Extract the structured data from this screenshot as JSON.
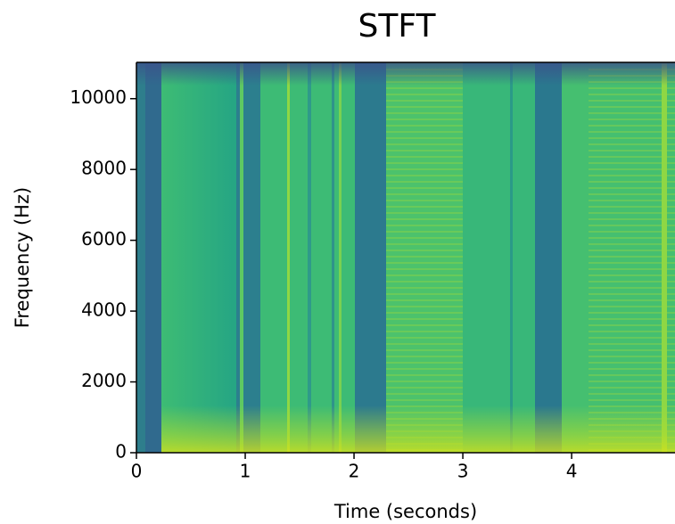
{
  "chart_data": {
    "type": "spectrogram",
    "title": "STFT",
    "title_color": "#c00000",
    "x_label": "Time (seconds)",
    "y_label": "Frequency (Hz)",
    "xlim": [
      0,
      4.95
    ],
    "ylim": [
      0,
      11025
    ],
    "xticks": [
      0,
      1,
      2,
      3,
      4
    ],
    "yticks": [
      0,
      2000,
      4000,
      6000,
      8000,
      10000
    ]
  }
}
